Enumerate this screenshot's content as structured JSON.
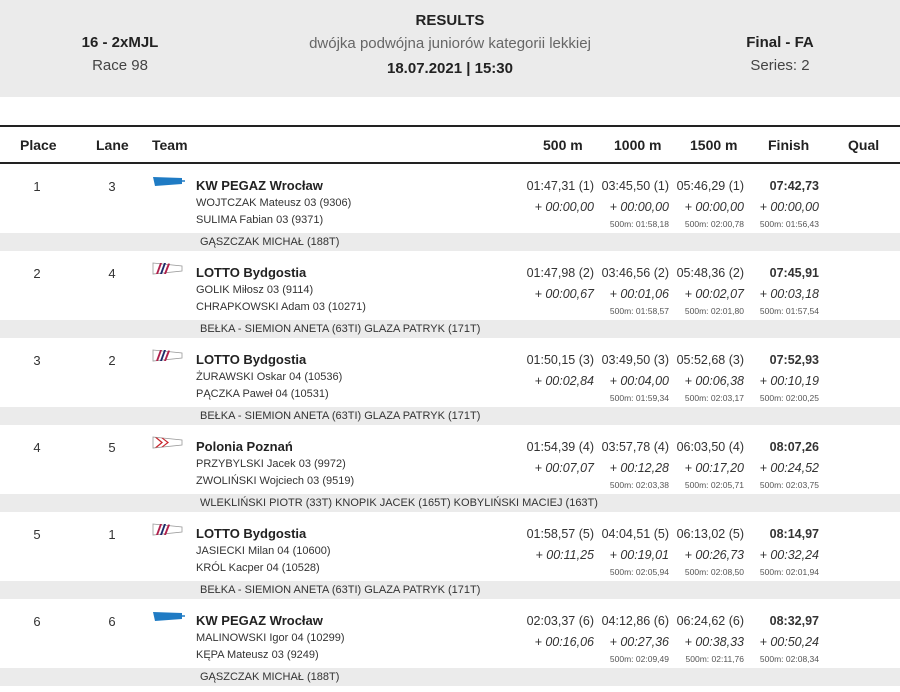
{
  "header": {
    "event": "16 - 2xMJL",
    "race": "Race 98",
    "title": "RESULTS",
    "description": "dwójka podwójna juniorów kategorii lekkiej",
    "datetime": "18.07.2021 | 15:30",
    "phase": "Final - FA",
    "series": "Series: 2"
  },
  "columns": {
    "place": "Place",
    "lane": "Lane",
    "team": "Team",
    "m500": "500 m",
    "m1000": "1000 m",
    "m1500": "1500 m",
    "finish": "Finish",
    "qual": "Qual"
  },
  "rows": [
    {
      "place": "1",
      "lane": "3",
      "team": "KW PEGAZ Wrocław",
      "blade": "pegaz",
      "crew1": "WOJTCZAK  Mateusz 03 (9306)",
      "crew2": "SULIMA  Fabian 03 (9371)",
      "coach": "GĄSZCZAK MICHAŁ (188T)",
      "s500": [
        "01:47,31 (1)",
        "+ 00:00,00",
        ""
      ],
      "s1000": [
        "03:45,50 (1)",
        "+ 00:00,00",
        "500m: 01:58,18"
      ],
      "s1500": [
        "05:46,29 (1)",
        "+ 00:00,00",
        "500m: 02:00,78"
      ],
      "fin": [
        "07:42,73",
        "+ 00:00,00",
        "500m: 01:56,43"
      ]
    },
    {
      "place": "2",
      "lane": "4",
      "team": "LOTTO Bydgostia",
      "blade": "lotto",
      "crew1": "GOLIK  Miłosz 03 (9114)",
      "crew2": "CHRAPKOWSKI  Adam 03 (10271)",
      "coach": "BEŁKA - SIEMION ANETA (63TI) GLAZA PATRYK (171T)",
      "s500": [
        "01:47,98 (2)",
        "+ 00:00,67",
        ""
      ],
      "s1000": [
        "03:46,56 (2)",
        "+ 00:01,06",
        "500m: 01:58,57"
      ],
      "s1500": [
        "05:48,36 (2)",
        "+ 00:02,07",
        "500m: 02:01,80"
      ],
      "fin": [
        "07:45,91",
        "+ 00:03,18",
        "500m: 01:57,54"
      ]
    },
    {
      "place": "3",
      "lane": "2",
      "team": "LOTTO Bydgostia",
      "blade": "lotto",
      "crew1": "ŻURAWSKI  Oskar 04 (10536)",
      "crew2": "PĄCZKA  Paweł 04 (10531)",
      "coach": "BEŁKA - SIEMION ANETA (63TI) GLAZA PATRYK (171T)",
      "s500": [
        "01:50,15 (3)",
        "+ 00:02,84",
        ""
      ],
      "s1000": [
        "03:49,50 (3)",
        "+ 00:04,00",
        "500m: 01:59,34"
      ],
      "s1500": [
        "05:52,68 (3)",
        "+ 00:06,38",
        "500m: 02:03,17"
      ],
      "fin": [
        "07:52,93",
        "+ 00:10,19",
        "500m: 02:00,25"
      ]
    },
    {
      "place": "4",
      "lane": "5",
      "team": "Polonia Poznań",
      "blade": "polonia",
      "crew1": "PRZYBYLSKI  Jacek 03 (9972)",
      "crew2": "ZWOLIŃSKI  Wojciech 03 (9519)",
      "coach": "WLEKLIŃSKI PIOTR (33T) KNOPIK JACEK (165T) KOBYLIŃSKI MACIEJ (163T)",
      "s500": [
        "01:54,39 (4)",
        "+ 00:07,07",
        ""
      ],
      "s1000": [
        "03:57,78 (4)",
        "+ 00:12,28",
        "500m: 02:03,38"
      ],
      "s1500": [
        "06:03,50 (4)",
        "+ 00:17,20",
        "500m: 02:05,71"
      ],
      "fin": [
        "08:07,26",
        "+ 00:24,52",
        "500m: 02:03,75"
      ]
    },
    {
      "place": "5",
      "lane": "1",
      "team": "LOTTO Bydgostia",
      "blade": "lotto",
      "crew1": "JASIECKI  Milan 04 (10600)",
      "crew2": "KRÓL  Kacper 04 (10528)",
      "coach": "BEŁKA - SIEMION ANETA (63TI) GLAZA PATRYK (171T)",
      "s500": [
        "01:58,57 (5)",
        "+ 00:11,25",
        ""
      ],
      "s1000": [
        "04:04,51 (5)",
        "+ 00:19,01",
        "500m: 02:05,94"
      ],
      "s1500": [
        "06:13,02 (5)",
        "+ 00:26,73",
        "500m: 02:08,50"
      ],
      "fin": [
        "08:14,97",
        "+ 00:32,24",
        "500m: 02:01,94"
      ]
    },
    {
      "place": "6",
      "lane": "6",
      "team": "KW PEGAZ Wrocław",
      "blade": "pegaz",
      "crew1": "MALINOWSKI  Igor 04 (10299)",
      "crew2": "KĘPA  Mateusz 03 (9249)",
      "coach": "GĄSZCZAK MICHAŁ (188T)",
      "s500": [
        "02:03,37 (6)",
        "+ 00:16,06",
        ""
      ],
      "s1000": [
        "04:12,86 (6)",
        "+ 00:27,36",
        "500m: 02:09,49"
      ],
      "s1500": [
        "06:24,62 (6)",
        "+ 00:38,33",
        "500m: 02:11,76"
      ],
      "fin": [
        "08:32,97",
        "+ 00:50,24",
        "500m: 02:08,34"
      ]
    }
  ]
}
